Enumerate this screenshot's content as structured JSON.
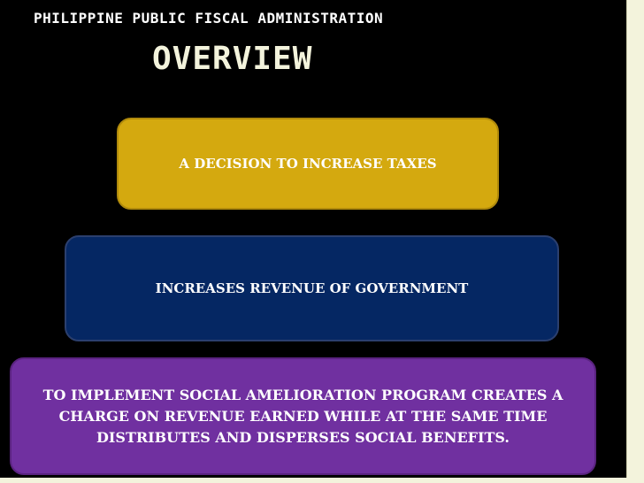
{
  "slide": {
    "header": "PHILIPPINE PUBLIC FISCAL ADMINISTRATION",
    "title": "OVERVIEW"
  },
  "diagram": {
    "type": "stacked-tiers",
    "tiers": [
      {
        "text": "A DECISION TO INCREASE  TAXES",
        "color": "#d4a90f"
      },
      {
        "text": "INCREASES REVENUE OF GOVERNMENT",
        "color": "#052763"
      },
      {
        "text": "TO IMPLEMENT SOCIAL AMELIORATION PROGRAM CREATES A CHARGE ON REVENUE EARNED WHILE AT THE SAME TIME DISTRIBUTES AND DISPERSES SOCIAL BENEFITS.",
        "color": "#7030a0"
      }
    ]
  },
  "colors": {
    "background": "#000000",
    "frame": "#f3f3dc"
  }
}
